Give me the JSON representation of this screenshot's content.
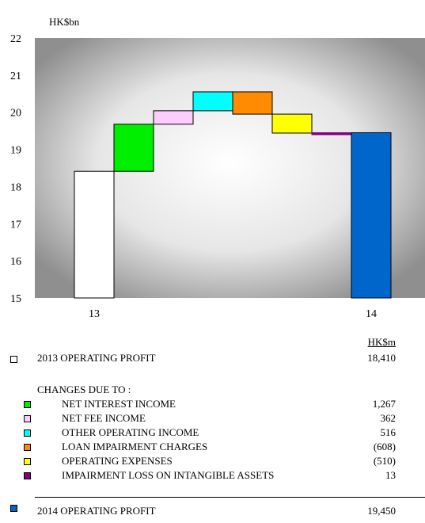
{
  "chart_data": {
    "type": "waterfall",
    "unit_label": "HK$bn",
    "ylim": [
      15,
      22
    ],
    "yticks": [
      "22",
      "21",
      "20",
      "19",
      "18",
      "17",
      "16",
      "15"
    ],
    "categories": [
      "13",
      "14"
    ],
    "steps": [
      {
        "label": "2013 OPERATING PROFIT",
        "start": 15,
        "end": 18.41,
        "color": "#ffffff",
        "kind": "total"
      },
      {
        "label": "NET INTEREST INCOME",
        "start": 18.41,
        "end": 19.68,
        "color": "#00ee00",
        "kind": "delta"
      },
      {
        "label": "NET FEE INCOME",
        "start": 19.68,
        "end": 20.04,
        "color": "#ffccff",
        "kind": "delta"
      },
      {
        "label": "OTHER OPERATING INCOME",
        "start": 20.04,
        "end": 20.55,
        "color": "#00ffff",
        "kind": "delta"
      },
      {
        "label": "LOAN IMPAIRMENT CHARGES",
        "start": 20.55,
        "end": 19.95,
        "color": "#ff8c00",
        "kind": "delta"
      },
      {
        "label": "OPERATING EXPENSES",
        "start": 19.95,
        "end": 19.44,
        "color": "#ffff00",
        "kind": "delta"
      },
      {
        "label": "IMPAIRMENT LOSS ON INTANGIBLE ASSETS",
        "start": 19.44,
        "end": 19.45,
        "color": "#800080",
        "kind": "delta"
      },
      {
        "label": "2014 OPERATING PROFIT",
        "start": 15,
        "end": 19.45,
        "color": "#0066cc",
        "kind": "total"
      }
    ]
  },
  "legend": {
    "unit_header": "HK$m",
    "start_row": {
      "label": "2013 OPERATING PROFIT",
      "value": "18,410",
      "color": "#ffffff"
    },
    "changes_heading": "CHANGES DUE TO :",
    "items": [
      {
        "label": "NET INTEREST INCOME",
        "value": "1,267",
        "color": "#00ee00"
      },
      {
        "label": "NET FEE INCOME",
        "value": "362",
        "color": "#ffccff"
      },
      {
        "label": "OTHER OPERATING INCOME",
        "value": "516",
        "color": "#00ffff"
      },
      {
        "label": "LOAN IMPAIRMENT CHARGES",
        "value": "(608)",
        "color": "#ff8c00"
      },
      {
        "label": "OPERATING EXPENSES",
        "value": "(510)",
        "color": "#ffff00"
      },
      {
        "label": "IMPAIRMENT LOSS ON INTANGIBLE ASSETS",
        "value": "13",
        "color": "#800080"
      }
    ],
    "end_row": {
      "label": "2014 OPERATING PROFIT",
      "value": "19,450",
      "color": "#0066cc"
    }
  }
}
